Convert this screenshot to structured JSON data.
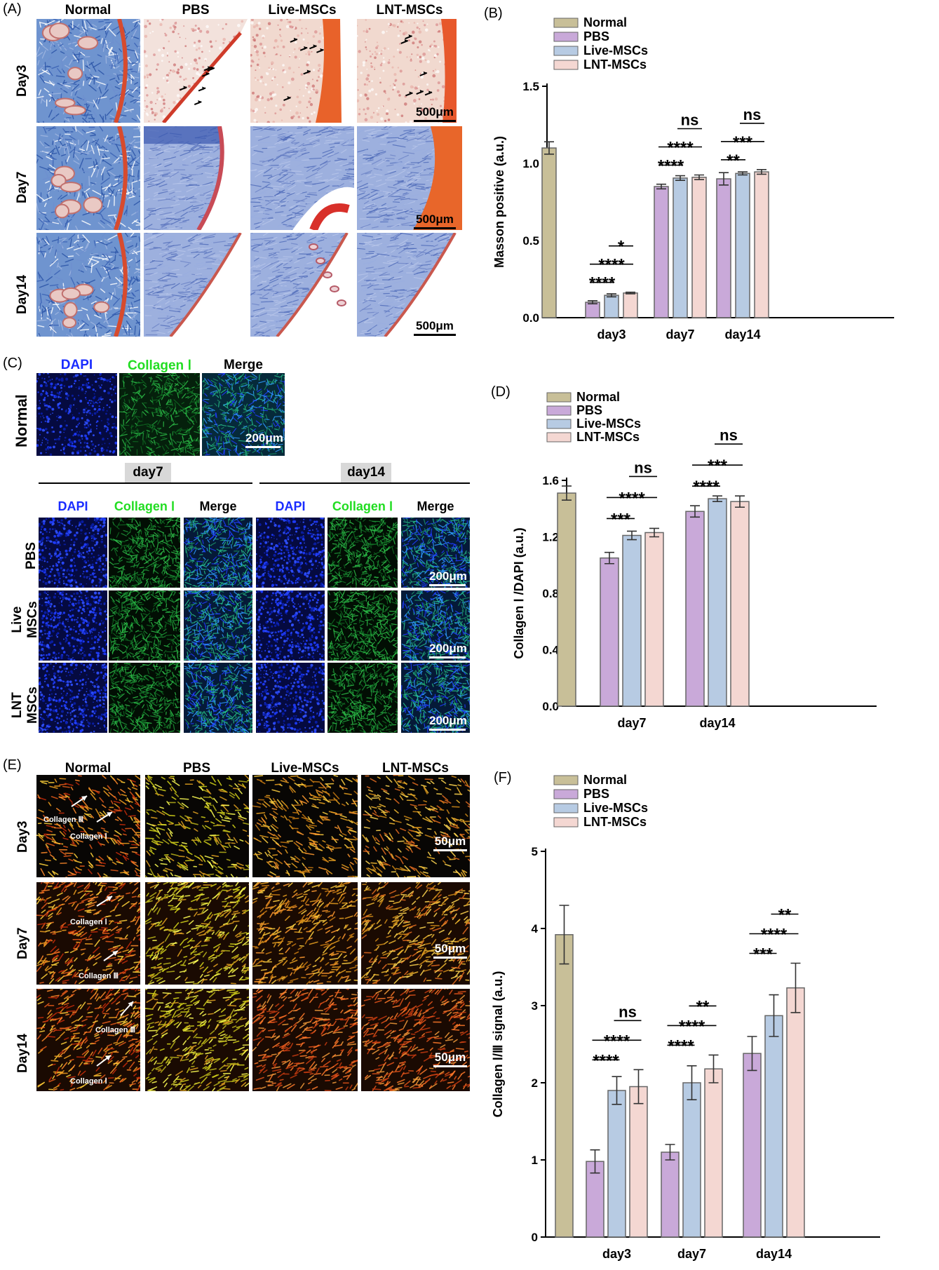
{
  "panel_letters": {
    "A": "(A)",
    "B": "(B)",
    "C": "(C)",
    "D": "(D)",
    "E": "(E)",
    "F": "(F)"
  },
  "panelA": {
    "columns": [
      "Normal",
      "PBS",
      "Live-MSCs",
      "LNT-MSCs"
    ],
    "rows": [
      "Day3",
      "Day7",
      "Day14"
    ],
    "scale": "500μm"
  },
  "panelC": {
    "stains": [
      "DAPI",
      "Collagen Ⅰ",
      "Merge"
    ],
    "normal_row": "Normal",
    "groups": [
      "day7",
      "day14"
    ],
    "rows": [
      "PBS",
      "Live\nMSCs",
      "LNT\nMSCs"
    ],
    "scale": "200μm"
  },
  "panelE": {
    "columns": [
      "Normal",
      "PBS",
      "Live-MSCs",
      "LNT-MSCs"
    ],
    "rows": [
      "Day3",
      "Day7",
      "Day14"
    ],
    "scale": "50μm",
    "labels": {
      "d3a": "Collagen Ⅲ",
      "d3b": "Collagen Ⅰ",
      "d7a": "Collagen Ⅰ",
      "d7b": "Collagen Ⅲ",
      "d14a": "Collagen Ⅲ",
      "d14b": "Collagen Ⅰ"
    }
  },
  "legend": [
    "Normal",
    "PBS",
    "Live-MSCs",
    "LNT-MSCs"
  ],
  "colors": {
    "Normal": "#c8bf98",
    "PBS": "#c9a9d9",
    "Live-MSCs": "#b7cbe3",
    "LNT-MSCs": "#f4d7d2"
  },
  "chart_data": [
    {
      "panel": "B",
      "type": "bar",
      "ylabel": "Masson positive (a.u.)",
      "ylim": [
        0,
        1.5
      ],
      "yticks": [
        "0.0",
        "0.5",
        "1.0",
        "1.5"
      ],
      "normal": {
        "value": 1.1,
        "err": 0.04
      },
      "categories": [
        "day3",
        "day7",
        "day14"
      ],
      "series": [
        {
          "name": "PBS",
          "values": [
            0.1,
            0.85,
            0.9
          ],
          "err": [
            0.01,
            0.015,
            0.04
          ]
        },
        {
          "name": "Live-MSCs",
          "values": [
            0.145,
            0.905,
            0.935
          ],
          "err": [
            0.01,
            0.015,
            0.01
          ]
        },
        {
          "name": "LNT-MSCs",
          "values": [
            0.16,
            0.91,
            0.945
          ],
          "err": [
            0.005,
            0.015,
            0.015
          ]
        }
      ],
      "significance": [
        {
          "cat": 0,
          "from": 0,
          "to": 1,
          "text": "****"
        },
        {
          "cat": 0,
          "from": 0,
          "to": 2,
          "text": "****"
        },
        {
          "cat": 0,
          "from": 1,
          "to": 2,
          "text": "*"
        },
        {
          "cat": 1,
          "from": 0,
          "to": 1,
          "text": "****"
        },
        {
          "cat": 1,
          "from": 0,
          "to": 2,
          "text": "****"
        },
        {
          "cat": 1,
          "from": 1,
          "to": 2,
          "text": "ns"
        },
        {
          "cat": 2,
          "from": 0,
          "to": 1,
          "text": "**"
        },
        {
          "cat": 2,
          "from": 0,
          "to": 2,
          "text": "***"
        },
        {
          "cat": 2,
          "from": 1,
          "to": 2,
          "text": "ns"
        }
      ]
    },
    {
      "panel": "D",
      "type": "bar",
      "ylabel": "Collagen Ⅰ /DAPI (a.u.)",
      "ylim": [
        0,
        1.6
      ],
      "yticks": [
        "0.0",
        "0.4",
        "0.8",
        "1.2",
        "1.6"
      ],
      "normal": {
        "value": 1.51,
        "err": 0.05
      },
      "categories": [
        "day7",
        "day14"
      ],
      "series": [
        {
          "name": "PBS",
          "values": [
            1.05,
            1.38
          ],
          "err": [
            0.04,
            0.04
          ]
        },
        {
          "name": "Live-MSCs",
          "values": [
            1.21,
            1.47
          ],
          "err": [
            0.03,
            0.02
          ]
        },
        {
          "name": "LNT-MSCs",
          "values": [
            1.23,
            1.45
          ],
          "err": [
            0.03,
            0.04
          ]
        }
      ],
      "significance": [
        {
          "cat": 0,
          "from": 0,
          "to": 1,
          "text": "***"
        },
        {
          "cat": 0,
          "from": 0,
          "to": 2,
          "text": "****"
        },
        {
          "cat": 0,
          "from": 1,
          "to": 2,
          "text": "ns"
        },
        {
          "cat": 1,
          "from": 0,
          "to": 1,
          "text": "****"
        },
        {
          "cat": 1,
          "from": 0,
          "to": 2,
          "text": "***"
        },
        {
          "cat": 1,
          "from": 1,
          "to": 2,
          "text": "ns"
        }
      ]
    },
    {
      "panel": "F",
      "type": "bar",
      "ylabel": "Collagen  Ⅰ/Ⅲ signal (a.u.)",
      "ylim": [
        0,
        5
      ],
      "yticks": [
        "0",
        "1",
        "2",
        "3",
        "4",
        "5"
      ],
      "normal": {
        "value": 3.92,
        "err": 0.38
      },
      "categories": [
        "day3",
        "day7",
        "day14"
      ],
      "series": [
        {
          "name": "PBS",
          "values": [
            0.98,
            1.1,
            2.38
          ],
          "err": [
            0.15,
            0.1,
            0.22
          ]
        },
        {
          "name": "Live-MSCs",
          "values": [
            1.9,
            2.0,
            2.87
          ],
          "err": [
            0.18,
            0.22,
            0.27
          ]
        },
        {
          "name": "LNT-MSCs",
          "values": [
            1.95,
            2.18,
            3.23
          ],
          "err": [
            0.22,
            0.18,
            0.32
          ]
        }
      ],
      "significance": [
        {
          "cat": 0,
          "from": 0,
          "to": 1,
          "text": "****"
        },
        {
          "cat": 0,
          "from": 0,
          "to": 2,
          "text": "****"
        },
        {
          "cat": 0,
          "from": 1,
          "to": 2,
          "text": "ns"
        },
        {
          "cat": 1,
          "from": 0,
          "to": 1,
          "text": "****"
        },
        {
          "cat": 1,
          "from": 0,
          "to": 2,
          "text": "****"
        },
        {
          "cat": 1,
          "from": 1,
          "to": 2,
          "text": "**"
        },
        {
          "cat": 2,
          "from": 0,
          "to": 1,
          "text": "***"
        },
        {
          "cat": 2,
          "from": 0,
          "to": 2,
          "text": "****"
        },
        {
          "cat": 2,
          "from": 1,
          "to": 2,
          "text": "**"
        }
      ]
    }
  ]
}
